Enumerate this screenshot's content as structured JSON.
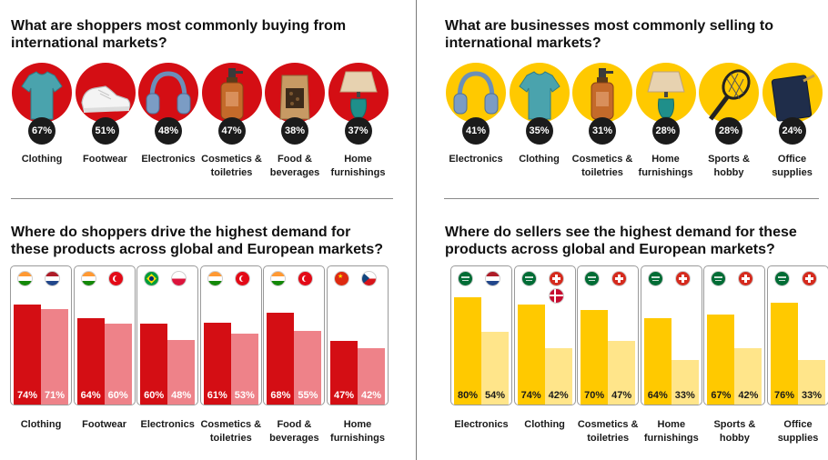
{
  "colors": {
    "red": "#d40e14",
    "red_light": "#ee8289",
    "yellow": "#ffc900",
    "yellow_light": "#ffe58a"
  },
  "chart_data": [
    {
      "type": "bar",
      "title": "What are shoppers most commonly buying from international markets?",
      "categories": [
        "Clothing",
        "Footwear",
        "Electronics",
        "Cosmetics & toiletries",
        "Food & beverages",
        "Home furnishings"
      ],
      "values": [
        67,
        51,
        48,
        47,
        38,
        37
      ],
      "labels": [
        "67%",
        "51%",
        "48%",
        "47%",
        "38%",
        "37%"
      ],
      "icons": [
        "tshirt-icon",
        "sneaker-icon",
        "headphones-icon",
        "cosmetics-bottle-icon",
        "food-bag-icon",
        "lamp-icon"
      ],
      "unit": "%"
    },
    {
      "type": "bar",
      "title": "What are businesses most commonly selling to international markets?",
      "categories": [
        "Electronics",
        "Clothing",
        "Cosmetics & toiletries",
        "Home furnishings",
        "Sports & hobby",
        "Office supplies"
      ],
      "values": [
        41,
        35,
        31,
        28,
        28,
        24
      ],
      "labels": [
        "41%",
        "35%",
        "31%",
        "28%",
        "28%",
        "24%"
      ],
      "icons": [
        "headphones-icon",
        "tshirt-icon",
        "cosmetics-bottle-icon",
        "lamp-icon",
        "racket-icon",
        "notebook-icon"
      ],
      "unit": "%"
    },
    {
      "type": "bar",
      "title": "Where do shoppers drive the highest demand for these products across global and European markets?",
      "categories": [
        "Clothing",
        "Footwear",
        "Electronics",
        "Cosmetics & toiletries",
        "Food & beverages",
        "Home furnishings"
      ],
      "series": [
        {
          "values": [
            74,
            64,
            60,
            61,
            68,
            47
          ],
          "labels": [
            "74%",
            "64%",
            "60%",
            "61%",
            "68%",
            "47%"
          ],
          "flags": [
            [
              "india-flag"
            ],
            [
              "india-flag"
            ],
            [
              "brazil-flag"
            ],
            [
              "india-flag"
            ],
            [
              "india-flag"
            ],
            [
              "china-flag"
            ]
          ]
        },
        {
          "values": [
            71,
            60,
            48,
            53,
            55,
            42
          ],
          "labels": [
            "71%",
            "60%",
            "48%",
            "53%",
            "55%",
            "42%"
          ],
          "flags": [
            [
              "netherlands-flag"
            ],
            [
              "turkey-flag"
            ],
            [
              "poland-flag"
            ],
            [
              "turkey-flag"
            ],
            [
              "turkey-flag"
            ],
            [
              "czech-flag"
            ]
          ]
        }
      ],
      "ylim": [
        0,
        100
      ],
      "unit": "%"
    },
    {
      "type": "bar",
      "title": "Where do sellers see the highest demand for these products across global and European markets?",
      "categories": [
        "Electronics",
        "Clothing",
        "Cosmetics & toiletries",
        "Home furnishings",
        "Sports & hobby",
        "Office supplies"
      ],
      "series": [
        {
          "values": [
            80,
            74,
            70,
            64,
            67,
            76
          ],
          "labels": [
            "80%",
            "74%",
            "70%",
            "64%",
            "67%",
            "76%"
          ],
          "flags": [
            [
              "saudi-arabia-flag"
            ],
            [
              "saudi-arabia-flag"
            ],
            [
              "saudi-arabia-flag"
            ],
            [
              "saudi-arabia-flag"
            ],
            [
              "saudi-arabia-flag"
            ],
            [
              "saudi-arabia-flag"
            ]
          ]
        },
        {
          "values": [
            54,
            42,
            47,
            33,
            42,
            33
          ],
          "labels": [
            "54%",
            "42%",
            "47%",
            "33%",
            "42%",
            "33%"
          ],
          "flags": [
            [
              "netherlands-flag"
            ],
            [
              "switzerland-flag",
              "denmark-flag"
            ],
            [
              "switzerland-flag"
            ],
            [
              "switzerland-flag"
            ],
            [
              "switzerland-flag"
            ],
            [
              "switzerland-flag"
            ]
          ]
        }
      ],
      "ylim": [
        0,
        100
      ],
      "unit": "%"
    }
  ]
}
